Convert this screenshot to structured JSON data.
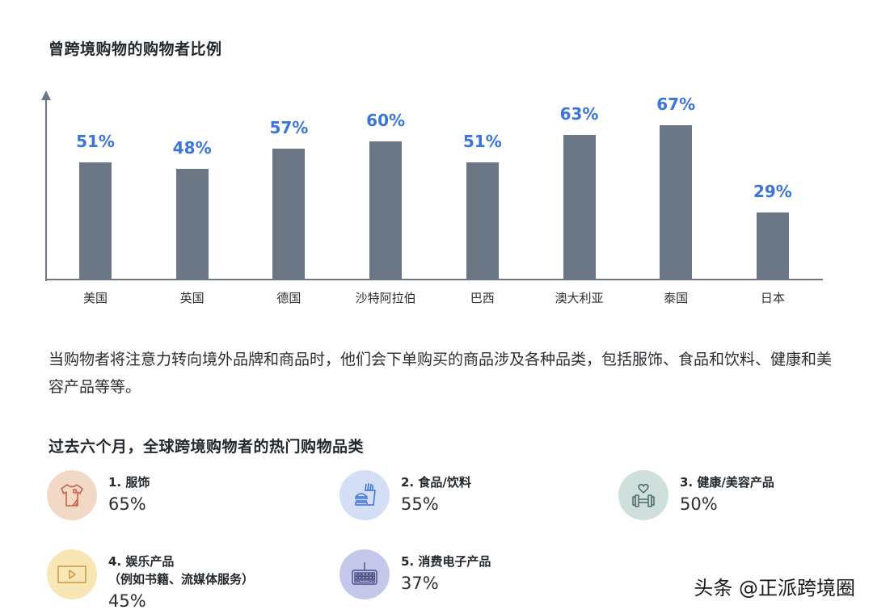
{
  "title": "曾跨境购物的购物者比例",
  "chart_data": {
    "type": "bar",
    "title": "曾跨境购物的购物者比例",
    "categories": [
      "美国",
      "英国",
      "德国",
      "沙特阿拉伯",
      "巴西",
      "澳大利亚",
      "泰国",
      "日本"
    ],
    "values": [
      51,
      48,
      57,
      60,
      51,
      63,
      67,
      29
    ],
    "value_labels": [
      "51%",
      "48%",
      "57%",
      "60%",
      "51%",
      "63%",
      "67%",
      "29%"
    ],
    "xlabel": "",
    "ylabel": "",
    "ylim": [
      0,
      80
    ],
    "grid": false,
    "legend": "none",
    "bar_color": "#6b7785",
    "label_color": "#3b74db"
  },
  "paragraph": "当购物者将注意力转向境外品牌和商品时，他们会下单购买的商品涉及各种品类，包括服饰、食品和饮料、健康和美容产品等等。",
  "subtitle": "过去六个月，全球跨境购物者的热门购物品类",
  "categories": [
    {
      "rank_name": "1. 服饰",
      "sub": "",
      "pct": "65%",
      "icon": "tshirt-icon",
      "bg": "#f1d9c6",
      "stroke": "#c7634a"
    },
    {
      "rank_name": "2. 食品/饮料",
      "sub": "",
      "pct": "55%",
      "icon": "burger-fries-icon",
      "bg": "#d4def4",
      "stroke": "#3f6fd6"
    },
    {
      "rank_name": "3. 健康/美容产品",
      "sub": "",
      "pct": "50%",
      "icon": "heart-dumbbell-icon",
      "bg": "#cfe0dc",
      "stroke": "#4a6a66"
    },
    {
      "rank_name": "4. 娱乐产品",
      "sub": "（例如书籍、流媒体服务）",
      "pct": "45%",
      "icon": "video-play-icon",
      "bg": "#f8e6b4",
      "stroke": "#c89a48"
    },
    {
      "rank_name": "5. 消费电子产品",
      "sub": "",
      "pct": "37%",
      "icon": "keyboard-icon",
      "bg": "#c5c8ea",
      "stroke": "#4a4f86"
    }
  ],
  "watermark": "头条 @正派跨境圈"
}
